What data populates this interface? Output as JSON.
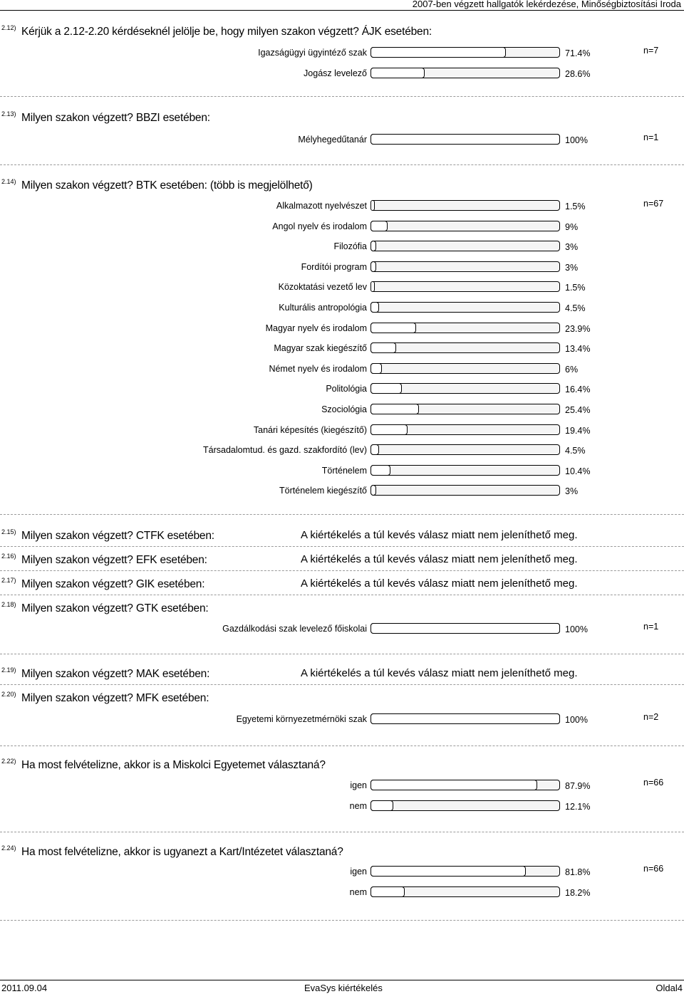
{
  "header": {
    "title": "2007-ben végzett hallgatók lekérdezése, Minőségbiztosítási Iroda"
  },
  "footer": {
    "date": "2011.09.04",
    "center": "EvaSys kiértékelés",
    "page": "Oldal4"
  },
  "sections": [
    {
      "num": "2.12)",
      "title": "Kérjük a 2.12-2.20 kérdéseknél jelölje be, hogy milyen szakon végzett? ÁJK esetében:",
      "n": "n=7",
      "rows": [
        {
          "label": "Igazságügyi ügyintéző szak",
          "pct": "71.4%",
          "value": 71.4
        },
        {
          "label": "Jogász levelező",
          "pct": "28.6%",
          "value": 28.6
        }
      ]
    },
    {
      "num": "2.13)",
      "title": "Milyen szakon végzett? BBZI esetében:",
      "n": "n=1",
      "rows": [
        {
          "label": "Mélyhegedűtanár",
          "pct": "100%",
          "value": 100
        }
      ]
    },
    {
      "num": "2.14)",
      "title": "Milyen szakon végzett? BTK esetében: (több is megjelölhető)",
      "n": "n=67",
      "rows": [
        {
          "label": "Alkalmazott nyelvészet",
          "pct": "1.5%",
          "value": 1.5
        },
        {
          "label": "Angol nyelv és irodalom",
          "pct": "9%",
          "value": 9
        },
        {
          "label": "Filozófia",
          "pct": "3%",
          "value": 3
        },
        {
          "label": "Fordítói program",
          "pct": "3%",
          "value": 3
        },
        {
          "label": "Közoktatási vezető lev",
          "pct": "1.5%",
          "value": 1.5
        },
        {
          "label": "Kulturális antropológia",
          "pct": "4.5%",
          "value": 4.5
        },
        {
          "label": "Magyar nyelv és irodalom",
          "pct": "23.9%",
          "value": 23.9
        },
        {
          "label": "Magyar szak kiegészítő",
          "pct": "13.4%",
          "value": 13.4
        },
        {
          "label": "Német nyelv és irodalom",
          "pct": "6%",
          "value": 6
        },
        {
          "label": "Politológia",
          "pct": "16.4%",
          "value": 16.4
        },
        {
          "label": "Szociológia",
          "pct": "25.4%",
          "value": 25.4
        },
        {
          "label": "Tanári képesítés (kiegészítő)",
          "pct": "19.4%",
          "value": 19.4
        },
        {
          "label": "Társadalomtud. és gazd. szakfordító (lev)",
          "pct": "4.5%",
          "value": 4.5
        },
        {
          "label": "Történelem",
          "pct": "10.4%",
          "value": 10.4
        },
        {
          "label": "Történelem kiegészítő",
          "pct": "3%",
          "value": 3
        }
      ]
    },
    {
      "num": "2.15)",
      "title": "Milyen szakon végzett? CTFK esetében:",
      "message": "A kiértékelés a túl kevés válasz miatt nem jeleníthető meg."
    },
    {
      "num": "2.16)",
      "title": "Milyen szakon végzett? EFK esetében:",
      "message": "A kiértékelés a túl kevés válasz miatt nem jeleníthető meg."
    },
    {
      "num": "2.17)",
      "title": "Milyen szakon végzett? GIK esetében:",
      "message": "A kiértékelés a túl kevés válasz miatt nem jeleníthető meg."
    },
    {
      "num": "2.18)",
      "title": "Milyen szakon végzett? GTK esetében:",
      "n": "n=1",
      "rows": [
        {
          "label": "Gazdálkodási szak levelező főiskolai",
          "pct": "100%",
          "value": 100
        }
      ]
    },
    {
      "num": "2.19)",
      "title": "Milyen szakon végzett? MAK esetében:",
      "message": "A kiértékelés a túl kevés válasz miatt nem jeleníthető meg."
    },
    {
      "num": "2.20)",
      "title": "Milyen szakon végzett? MFK esetében:",
      "n": "n=2",
      "rows": [
        {
          "label": "Egyetemi környezetmérnöki szak",
          "pct": "100%",
          "value": 100
        }
      ]
    },
    {
      "num": "2.22)",
      "title": "Ha most felvételizne, akkor is a Miskolci Egyetemet választaná?",
      "n": "n=66",
      "rows": [
        {
          "label": "igen",
          "pct": "87.9%",
          "value": 87.9
        },
        {
          "label": "nem",
          "pct": "12.1%",
          "value": 12.1
        }
      ]
    },
    {
      "num": "2.24)",
      "title": "Ha most felvételizne, akkor is ugyanezt a Kart/Intézetet választaná?",
      "n": "n=66",
      "rows": [
        {
          "label": "igen",
          "pct": "81.8%",
          "value": 81.8
        },
        {
          "label": "nem",
          "pct": "18.2%",
          "value": 18.2
        }
      ]
    }
  ]
}
